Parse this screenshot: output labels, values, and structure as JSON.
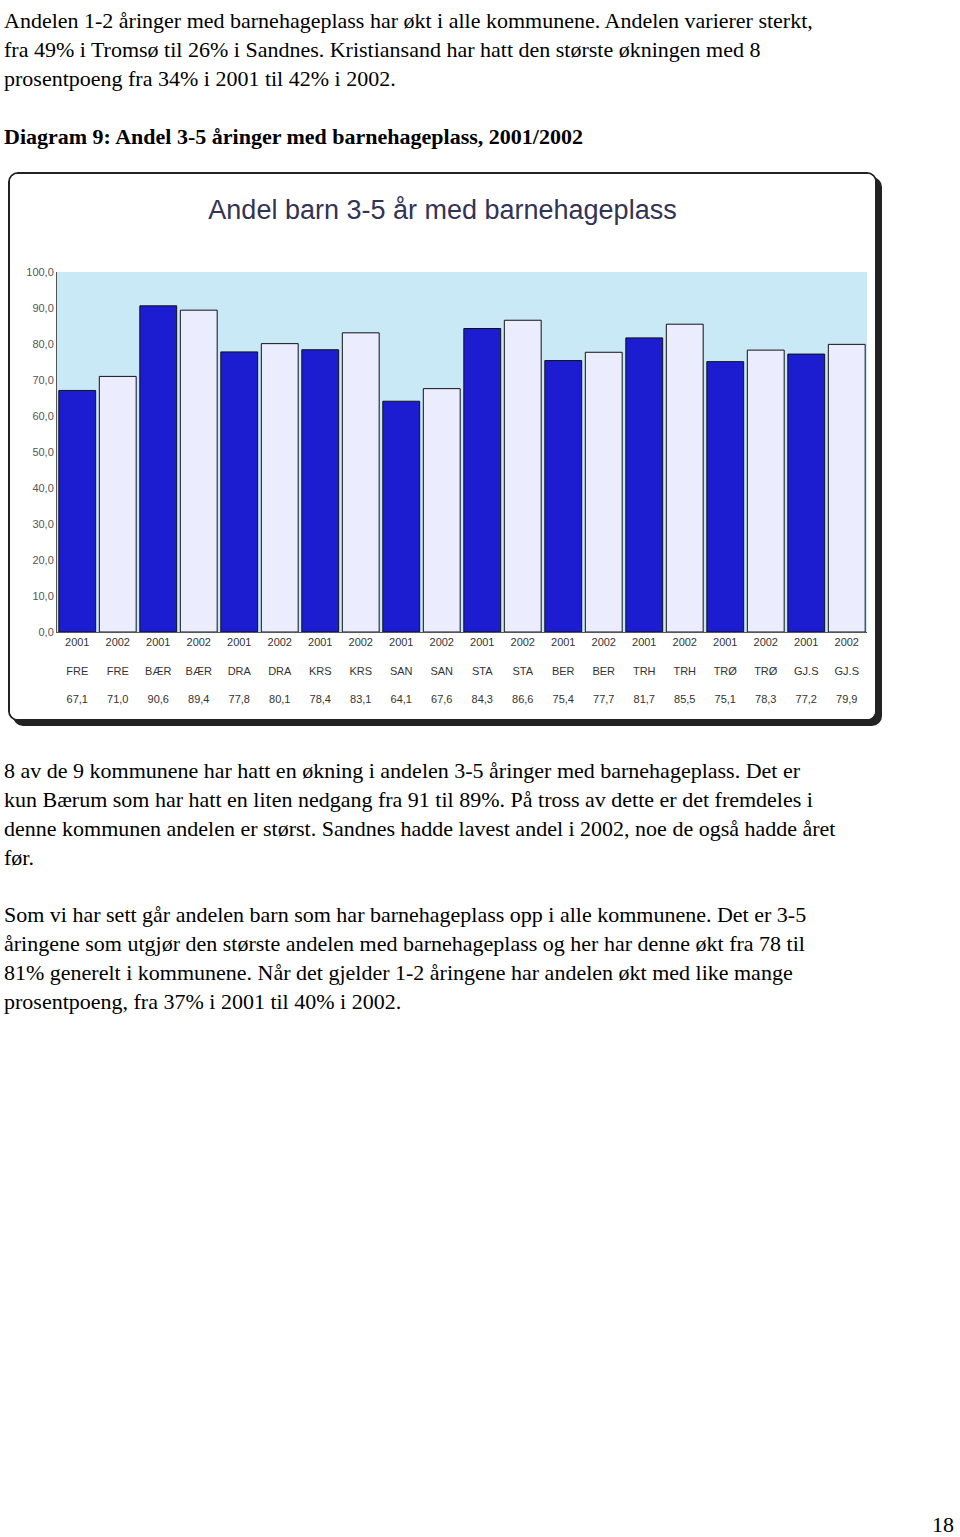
{
  "paragraph_1": [
    "Andelen 1-2 åringer med barnehageplass har økt i alle kommunene. Andelen varierer sterkt,",
    "fra 49% i Tromsø til 26% i Sandnes.  Kristiansand har hatt den største økningen med 8",
    "prosentpoeng fra 34% i 2001 til 42% i 2002."
  ],
  "caption": "Diagram 9: Andel 3-5 åringer med barnehageplass, 2001/2002",
  "chart_data": {
    "type": "bar",
    "title": "Andel barn 3-5 år med barnehageplass",
    "categories": [
      "2001\nFRE",
      "2002\nFRE",
      "2001\nBÆR",
      "2002\nBÆR",
      "2001\nDRA",
      "2002\nDRA",
      "2001\nKRS",
      "2002\nKRS",
      "2001\nSAN",
      "2002\nSAN",
      "2001\nSTA",
      "2002\nSTA",
      "2001\nBER",
      "2002\nBER",
      "2001\nTRH",
      "2002\nTRH",
      "2001\nTRØ",
      "2002\nTRØ",
      "2001\nGJ.S",
      "2002\nGJ.S"
    ],
    "values": [
      67.1,
      71.0,
      90.6,
      89.4,
      77.8,
      80.1,
      78.4,
      83.1,
      64.1,
      67.6,
      84.3,
      86.6,
      75.4,
      77.7,
      81.7,
      85.5,
      75.1,
      78.3,
      77.2,
      79.9
    ],
    "value_labels": [
      "67,1",
      "71,0",
      "90,6",
      "89,4",
      "77,8",
      "80,1",
      "78,4",
      "83,1",
      "64,1",
      "67,6",
      "84,3",
      "86,6",
      "75,4",
      "77,7",
      "81,7",
      "85,5",
      "75,1",
      "78,3",
      "77,2",
      "79,9"
    ],
    "colors": [
      "#1c1cd0",
      "#ececff",
      "#1c1cd0",
      "#ececff",
      "#1c1cd0",
      "#ececff",
      "#1c1cd0",
      "#ececff",
      "#1c1cd0",
      "#ececff",
      "#1c1cd0",
      "#ececff",
      "#1c1cd0",
      "#ececff",
      "#1c1cd0",
      "#ececff",
      "#1c1cd0",
      "#ececff",
      "#1c1cd0",
      "#ececff"
    ],
    "ylim": [
      0,
      100
    ],
    "yticks": [
      {
        "value": 0,
        "label": "0,0"
      },
      {
        "value": 10,
        "label": "10,0"
      },
      {
        "value": 20,
        "label": "20,0"
      },
      {
        "value": 30,
        "label": "30,0"
      },
      {
        "value": 40,
        "label": "40,0"
      },
      {
        "value": 50,
        "label": "50,0"
      },
      {
        "value": 60,
        "label": "60,0"
      },
      {
        "value": 70,
        "label": "70,0"
      },
      {
        "value": 80,
        "label": "80,0"
      },
      {
        "value": 90,
        "label": "90,0"
      },
      {
        "value": 100,
        "label": "100,0"
      }
    ],
    "grid": false
  },
  "paragraph_2": [
    "8 av de 9 kommunene har hatt en økning i andelen 3-5 åringer med barnehageplass. Det er",
    "kun Bærum som har hatt en liten nedgang fra 91 til 89%. På tross av dette er det fremdeles i",
    "denne kommunen andelen er størst. Sandnes hadde lavest andel i 2002, noe de også hadde året",
    "før."
  ],
  "paragraph_3": [
    "Som vi har sett går andelen barn som har barnehageplass opp i alle kommunene. Det er 3-5",
    "åringene som utgjør den største andelen med barnehageplass og her har denne økt fra 78 til",
    "81% generelt i kommunene. Når det gjelder 1-2 åringene har andelen økt med like mange",
    "prosentpoeng, fra 37% i 2001 til 40% i 2002."
  ],
  "page_number": "18"
}
